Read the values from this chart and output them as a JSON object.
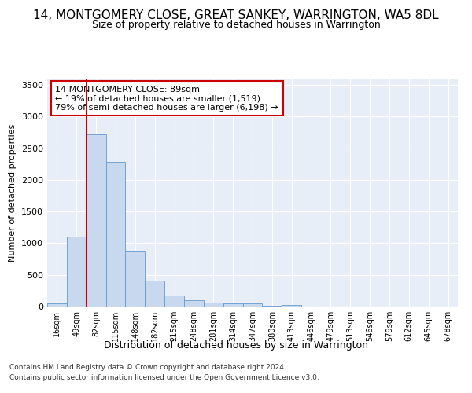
{
  "title": "14, MONTGOMERY CLOSE, GREAT SANKEY, WARRINGTON, WA5 8DL",
  "subtitle": "Size of property relative to detached houses in Warrington",
  "xlabel": "Distribution of detached houses by size in Warrington",
  "ylabel": "Number of detached properties",
  "categories": [
    "16sqm",
    "49sqm",
    "82sqm",
    "115sqm",
    "148sqm",
    "182sqm",
    "215sqm",
    "248sqm",
    "281sqm",
    "314sqm",
    "347sqm",
    "380sqm",
    "413sqm",
    "446sqm",
    "479sqm",
    "513sqm",
    "546sqm",
    "579sqm",
    "612sqm",
    "645sqm",
    "678sqm"
  ],
  "values": [
    55,
    1100,
    2720,
    2290,
    880,
    415,
    180,
    100,
    65,
    45,
    55,
    10,
    30,
    5,
    2,
    1,
    0,
    0,
    0,
    0,
    0
  ],
  "bar_color": "#c8d8ee",
  "bar_edge_color": "#6699cc",
  "vline_idx": 2,
  "vline_color": "#cc0000",
  "annotation_text": "14 MONTGOMERY CLOSE: 89sqm\n← 19% of detached houses are smaller (1,519)\n79% of semi-detached houses are larger (6,198) →",
  "annotation_box_color": "#ffffff",
  "annotation_box_edge": "#cc0000",
  "ylim": [
    0,
    3600
  ],
  "yticks": [
    0,
    500,
    1000,
    1500,
    2000,
    2500,
    3000,
    3500
  ],
  "footer1": "Contains HM Land Registry data © Crown copyright and database right 2024.",
  "footer2": "Contains public sector information licensed under the Open Government Licence v3.0.",
  "bg_color": "#ffffff",
  "plot_bg_color": "#e8eef8",
  "grid_color": "#ffffff",
  "title_fontsize": 11,
  "subtitle_fontsize": 9
}
